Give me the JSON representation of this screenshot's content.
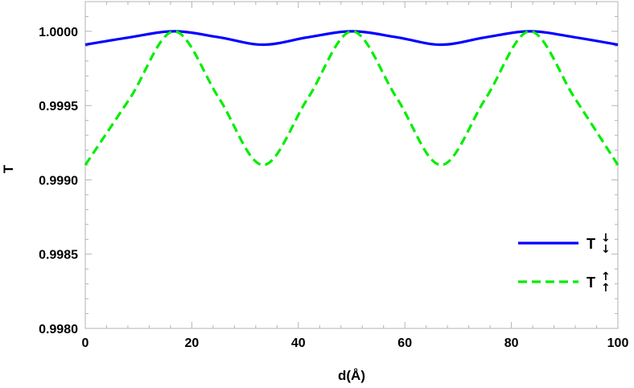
{
  "chart_data": {
    "type": "line",
    "xlabel": "d(Å)",
    "ylabel": "T",
    "xlim": [
      0,
      100
    ],
    "ylim": [
      0.998,
      1.0002
    ],
    "xticks": [
      0,
      20,
      40,
      60,
      80,
      100
    ],
    "xtick_labels": [
      "0",
      "20",
      "40",
      "60",
      "80",
      "100"
    ],
    "yticks": [
      0.998,
      0.9985,
      0.999,
      0.9995,
      1.0
    ],
    "ytick_labels": [
      "0.9980",
      "0.9985",
      "0.9990",
      "0.9995",
      "1.0000"
    ],
    "grid": false,
    "legend_position": "bottom-right",
    "series": [
      {
        "name": "T",
        "legend_arrows": "↓↓",
        "color": "#0000ff",
        "style": "solid",
        "x": [
          0,
          8.4,
          16.7,
          25.1,
          33.4,
          41.8,
          50.1,
          58.5,
          66.8,
          75.2,
          83.5,
          91.9,
          100
        ],
        "y": [
          0.99991,
          0.99996,
          1.0,
          0.99996,
          0.99991,
          0.99996,
          1.0,
          0.99996,
          0.99991,
          0.99996,
          1.0,
          0.99996,
          0.99991
        ]
      },
      {
        "name": "T",
        "legend_arrows": "↑↑",
        "color": "#00ee00",
        "style": "dashed",
        "x": [
          0,
          8.4,
          16.7,
          25.1,
          33.4,
          41.8,
          50.1,
          58.5,
          66.8,
          75.2,
          83.5,
          91.9,
          100
        ],
        "y": [
          0.9991,
          0.99955,
          1.0,
          0.99955,
          0.9991,
          0.99955,
          1.0,
          0.99955,
          0.9991,
          0.99955,
          1.0,
          0.99955,
          0.9991
        ]
      }
    ]
  }
}
